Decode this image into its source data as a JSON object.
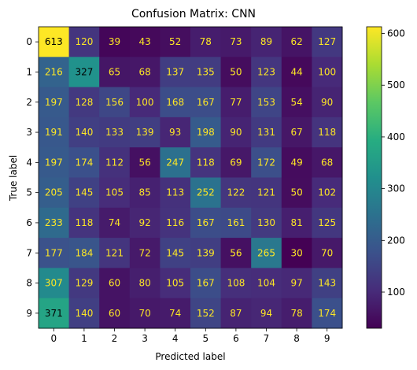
{
  "chart_data": {
    "type": "heatmap",
    "title": "Confusion Matrix: CNN",
    "xlabel": "Predicted label",
    "ylabel": "True label",
    "x_categories": [
      "0",
      "1",
      "2",
      "3",
      "4",
      "5",
      "6",
      "7",
      "8",
      "9"
    ],
    "y_categories": [
      "0",
      "1",
      "2",
      "3",
      "4",
      "5",
      "6",
      "7",
      "8",
      "9"
    ],
    "matrix": [
      [
        613,
        120,
        39,
        43,
        52,
        78,
        73,
        89,
        62,
        127
      ],
      [
        216,
        327,
        65,
        68,
        137,
        135,
        50,
        123,
        44,
        100
      ],
      [
        197,
        128,
        156,
        100,
        168,
        167,
        77,
        153,
        54,
        90
      ],
      [
        191,
        140,
        133,
        139,
        93,
        198,
        90,
        131,
        67,
        118
      ],
      [
        197,
        174,
        112,
        56,
        247,
        118,
        69,
        172,
        49,
        68
      ],
      [
        205,
        145,
        105,
        85,
        113,
        252,
        122,
        121,
        50,
        102
      ],
      [
        233,
        118,
        74,
        92,
        116,
        167,
        161,
        130,
        81,
        125
      ],
      [
        177,
        184,
        121,
        72,
        145,
        139,
        56,
        265,
        30,
        70
      ],
      [
        307,
        129,
        60,
        80,
        105,
        167,
        108,
        104,
        97,
        143
      ],
      [
        371,
        140,
        60,
        70,
        74,
        152,
        87,
        94,
        78,
        174
      ]
    ],
    "colormap": "viridis",
    "colorbar": {
      "vmin": 30,
      "vmax": 613,
      "ticks": [
        100,
        200,
        300,
        400,
        500,
        600
      ]
    },
    "text_colors": {
      "on_dark": "#fde725",
      "on_light": "#000000"
    }
  }
}
